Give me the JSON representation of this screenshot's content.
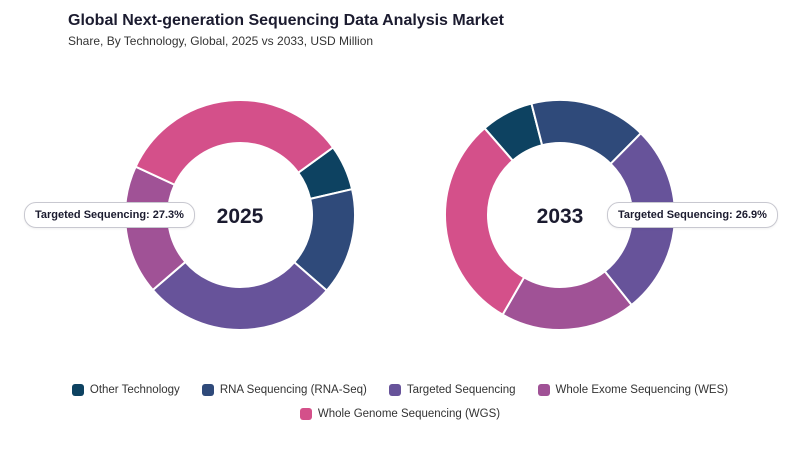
{
  "header": {
    "title": "Global Next-generation Sequencing Data Analysis Market",
    "subtitle": "Share, By Technology, Global, 2025 vs 2033, USD Million"
  },
  "chart_data": [
    {
      "type": "pie",
      "donut": true,
      "center_label": "2025",
      "categories": [
        "Other Technology",
        "RNA Sequencing (RNA-Seq)",
        "Targeted Sequencing",
        "Whole Exome Sequencing (WES)",
        "Whole Genome Sequencing (WGS)"
      ],
      "values": [
        6.4,
        15.0,
        27.3,
        18.2,
        33.1
      ],
      "colors": [
        "#0d4261",
        "#2f4a7a",
        "#67539a",
        "#a05296",
        "#d4508a"
      ],
      "annotation": "Targeted Sequencing: 27.3%"
    },
    {
      "type": "pie",
      "donut": true,
      "center_label": "2033",
      "categories": [
        "Other Technology",
        "RNA Sequencing (RNA-Seq)",
        "Targeted Sequencing",
        "Whole Exome Sequencing (WES)",
        "Whole Genome Sequencing (WGS)"
      ],
      "values": [
        7.4,
        16.4,
        26.9,
        19.0,
        30.3
      ],
      "colors": [
        "#0d4261",
        "#2f4a7a",
        "#67539a",
        "#a05296",
        "#d4508a"
      ],
      "annotation": "Targeted Sequencing: 26.9%"
    }
  ],
  "legend": {
    "items": [
      {
        "label": "Other Technology",
        "color": "#0d4261"
      },
      {
        "label": "RNA Sequencing (RNA-Seq)",
        "color": "#2f4a7a"
      },
      {
        "label": "Targeted Sequencing",
        "color": "#67539a"
      },
      {
        "label": "Whole Exome Sequencing (WES)",
        "color": "#a05296"
      },
      {
        "label": "Whole Genome Sequencing (WGS)",
        "color": "#d4508a"
      }
    ]
  }
}
